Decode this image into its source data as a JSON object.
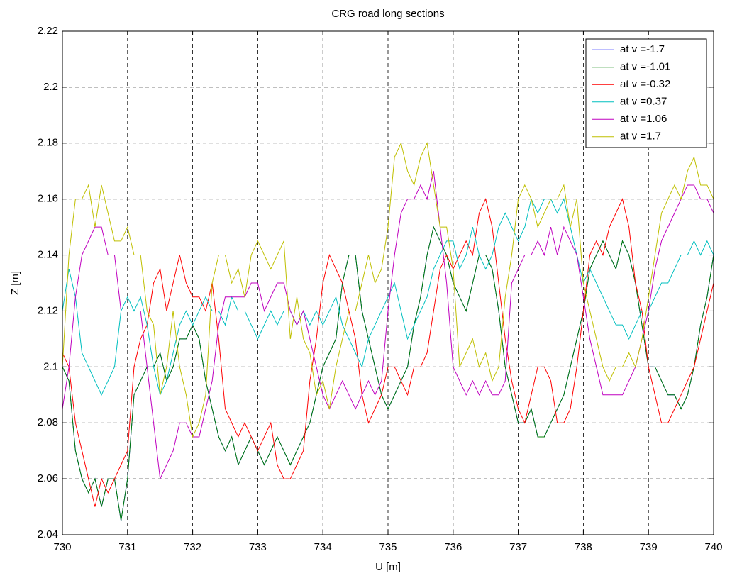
{
  "chart_data": {
    "type": "line",
    "title": "CRG road long sections",
    "x_label": "U [m]",
    "y_label": "Z [m]",
    "x": [
      730,
      730.1,
      730.2,
      730.3,
      730.4,
      730.5,
      730.6,
      730.7,
      730.8,
      730.9,
      731,
      731.1,
      731.2,
      731.3,
      731.4,
      731.5,
      731.6,
      731.7,
      731.8,
      731.9,
      732,
      732.1,
      732.2,
      732.3,
      732.4,
      732.5,
      732.6,
      732.7,
      732.8,
      732.9,
      733,
      733.1,
      733.2,
      733.3,
      733.4,
      733.5,
      733.6,
      733.7,
      733.8,
      733.9,
      734,
      734.1,
      734.2,
      734.3,
      734.4,
      734.5,
      734.6,
      734.7,
      734.8,
      734.9,
      735,
      735.1,
      735.2,
      735.3,
      735.4,
      735.5,
      735.6,
      735.7,
      735.8,
      735.9,
      736,
      736.1,
      736.2,
      736.3,
      736.4,
      736.5,
      736.6,
      736.7,
      736.8,
      736.9,
      737,
      737.1,
      737.2,
      737.3,
      737.4,
      737.5,
      737.6,
      737.7,
      737.8,
      737.9,
      738,
      738.1,
      738.2,
      738.3,
      738.4,
      738.5,
      738.6,
      738.7,
      738.8,
      738.9,
      739,
      739.1,
      739.2,
      739.3,
      739.4,
      739.5,
      739.6,
      739.7,
      739.8,
      739.9,
      740
    ],
    "series": [
      {
        "name": "at v =-1.7",
        "color": "#0000ff",
        "values": [
          2.1,
          2.095,
          2.07,
          2.06,
          2.055,
          2.06,
          2.05,
          2.06,
          2.06,
          2.045,
          2.06,
          2.09,
          2.095,
          2.1,
          2.1,
          2.105,
          2.095,
          2.1,
          2.11,
          2.11,
          2.115,
          2.11,
          2.095,
          2.085,
          2.075,
          2.07,
          2.075,
          2.065,
          2.07,
          2.075,
          2.07,
          2.065,
          2.07,
          2.075,
          2.07,
          2.065,
          2.07,
          2.075,
          2.08,
          2.09,
          2.1,
          2.105,
          2.11,
          2.13,
          2.14,
          2.14,
          2.12,
          2.11,
          2.1,
          2.09,
          2.085,
          2.09,
          2.095,
          2.1,
          2.115,
          2.125,
          2.14,
          2.15,
          2.145,
          2.14,
          2.13,
          2.125,
          2.12,
          2.13,
          2.14,
          2.14,
          2.135,
          2.12,
          2.1,
          2.09,
          2.08,
          2.08,
          2.085,
          2.075,
          2.075,
          2.08,
          2.085,
          2.09,
          2.1,
          2.11,
          2.12,
          2.135,
          2.14,
          2.145,
          2.14,
          2.135,
          2.145,
          2.14,
          2.13,
          2.115,
          2.1,
          2.1,
          2.095,
          2.09,
          2.09,
          2.085,
          2.09,
          2.1,
          2.115,
          2.125,
          2.14
        ]
      },
      {
        "name": "at v =-1.01",
        "color": "#008000",
        "values": [
          2.1,
          2.095,
          2.07,
          2.06,
          2.055,
          2.06,
          2.05,
          2.06,
          2.06,
          2.045,
          2.06,
          2.09,
          2.095,
          2.1,
          2.1,
          2.105,
          2.095,
          2.1,
          2.11,
          2.11,
          2.115,
          2.11,
          2.095,
          2.085,
          2.075,
          2.07,
          2.075,
          2.065,
          2.07,
          2.075,
          2.07,
          2.065,
          2.07,
          2.075,
          2.07,
          2.065,
          2.07,
          2.075,
          2.08,
          2.09,
          2.1,
          2.105,
          2.11,
          2.13,
          2.14,
          2.14,
          2.12,
          2.11,
          2.1,
          2.09,
          2.085,
          2.09,
          2.095,
          2.1,
          2.115,
          2.125,
          2.14,
          2.15,
          2.145,
          2.14,
          2.13,
          2.125,
          2.12,
          2.13,
          2.14,
          2.14,
          2.135,
          2.12,
          2.1,
          2.09,
          2.08,
          2.08,
          2.085,
          2.075,
          2.075,
          2.08,
          2.085,
          2.09,
          2.1,
          2.11,
          2.12,
          2.135,
          2.14,
          2.145,
          2.14,
          2.135,
          2.145,
          2.14,
          2.13,
          2.115,
          2.1,
          2.1,
          2.095,
          2.09,
          2.09,
          2.085,
          2.09,
          2.1,
          2.115,
          2.125,
          2.14
        ]
      },
      {
        "name": "at v =-0.32",
        "color": "#ff0000",
        "values": [
          2.105,
          2.1,
          2.08,
          2.07,
          2.06,
          2.05,
          2.06,
          2.055,
          2.06,
          2.065,
          2.07,
          2.1,
          2.11,
          2.115,
          2.13,
          2.135,
          2.12,
          2.13,
          2.14,
          2.13,
          2.125,
          2.125,
          2.12,
          2.13,
          2.11,
          2.085,
          2.08,
          2.075,
          2.08,
          2.075,
          2.07,
          2.075,
          2.08,
          2.065,
          2.06,
          2.06,
          2.065,
          2.07,
          2.095,
          2.11,
          2.13,
          2.14,
          2.135,
          2.13,
          2.12,
          2.11,
          2.09,
          2.08,
          2.085,
          2.09,
          2.1,
          2.1,
          2.095,
          2.09,
          2.1,
          2.1,
          2.105,
          2.12,
          2.135,
          2.14,
          2.135,
          2.14,
          2.145,
          2.14,
          2.155,
          2.16,
          2.15,
          2.13,
          2.11,
          2.095,
          2.085,
          2.08,
          2.09,
          2.1,
          2.1,
          2.095,
          2.08,
          2.08,
          2.085,
          2.1,
          2.12,
          2.14,
          2.145,
          2.14,
          2.15,
          2.155,
          2.16,
          2.15,
          2.13,
          2.12,
          2.1,
          2.09,
          2.08,
          2.08,
          2.085,
          2.09,
          2.095,
          2.1,
          2.11,
          2.12,
          2.13
        ]
      },
      {
        "name": "at v =0.37",
        "color": "#00bfbf",
        "values": [
          2.12,
          2.135,
          2.125,
          2.105,
          2.1,
          2.095,
          2.09,
          2.095,
          2.1,
          2.12,
          2.125,
          2.12,
          2.125,
          2.115,
          2.1,
          2.09,
          2.095,
          2.105,
          2.115,
          2.12,
          2.115,
          2.12,
          2.125,
          2.12,
          2.12,
          2.115,
          2.125,
          2.12,
          2.12,
          2.115,
          2.11,
          2.115,
          2.12,
          2.115,
          2.12,
          2.12,
          2.115,
          2.12,
          2.115,
          2.12,
          2.115,
          2.12,
          2.125,
          2.115,
          2.11,
          2.105,
          2.1,
          2.11,
          2.115,
          2.12,
          2.125,
          2.13,
          2.12,
          2.11,
          2.115,
          2.12,
          2.125,
          2.135,
          2.14,
          2.145,
          2.145,
          2.135,
          2.14,
          2.15,
          2.14,
          2.135,
          2.14,
          2.15,
          2.155,
          2.15,
          2.145,
          2.15,
          2.16,
          2.155,
          2.16,
          2.16,
          2.155,
          2.16,
          2.15,
          2.14,
          2.13,
          2.135,
          2.13,
          2.125,
          2.12,
          2.115,
          2.115,
          2.11,
          2.115,
          2.12,
          2.12,
          2.125,
          2.13,
          2.13,
          2.135,
          2.14,
          2.14,
          2.145,
          2.14,
          2.145,
          2.14
        ]
      },
      {
        "name": "at v =1.06",
        "color": "#bf00bf",
        "values": [
          2.085,
          2.1,
          2.125,
          2.14,
          2.145,
          2.15,
          2.15,
          2.14,
          2.14,
          2.12,
          2.12,
          2.12,
          2.12,
          2.1,
          2.08,
          2.06,
          2.065,
          2.07,
          2.08,
          2.08,
          2.075,
          2.075,
          2.085,
          2.095,
          2.115,
          2.125,
          2.125,
          2.125,
          2.125,
          2.13,
          2.13,
          2.12,
          2.125,
          2.13,
          2.13,
          2.12,
          2.115,
          2.12,
          2.11,
          2.1,
          2.09,
          2.085,
          2.09,
          2.095,
          2.09,
          2.085,
          2.09,
          2.095,
          2.09,
          2.095,
          2.12,
          2.14,
          2.155,
          2.16,
          2.16,
          2.165,
          2.16,
          2.17,
          2.15,
          2.13,
          2.1,
          2.095,
          2.09,
          2.095,
          2.09,
          2.095,
          2.09,
          2.09,
          2.095,
          2.13,
          2.135,
          2.14,
          2.14,
          2.145,
          2.14,
          2.15,
          2.14,
          2.15,
          2.145,
          2.14,
          2.125,
          2.11,
          2.1,
          2.09,
          2.09,
          2.09,
          2.09,
          2.095,
          2.1,
          2.11,
          2.12,
          2.135,
          2.145,
          2.15,
          2.155,
          2.16,
          2.165,
          2.165,
          2.16,
          2.16,
          2.155
        ]
      },
      {
        "name": "at v =1.7",
        "color": "#bfbf00",
        "values": [
          2.1,
          2.14,
          2.16,
          2.16,
          2.165,
          2.15,
          2.165,
          2.155,
          2.145,
          2.145,
          2.15,
          2.14,
          2.14,
          2.12,
          2.115,
          2.09,
          2.1,
          2.12,
          2.1,
          2.09,
          2.075,
          2.08,
          2.09,
          2.13,
          2.14,
          2.14,
          2.13,
          2.135,
          2.125,
          2.14,
          2.145,
          2.14,
          2.135,
          2.14,
          2.145,
          2.11,
          2.125,
          2.11,
          2.105,
          2.09,
          2.095,
          2.085,
          2.1,
          2.11,
          2.12,
          2.12,
          2.13,
          2.14,
          2.13,
          2.135,
          2.15,
          2.175,
          2.18,
          2.17,
          2.165,
          2.175,
          2.18,
          2.165,
          2.15,
          2.15,
          2.135,
          2.1,
          2.105,
          2.11,
          2.1,
          2.105,
          2.095,
          2.1,
          2.125,
          2.14,
          2.16,
          2.165,
          2.16,
          2.15,
          2.155,
          2.16,
          2.16,
          2.165,
          2.15,
          2.16,
          2.13,
          2.12,
          2.11,
          2.1,
          2.095,
          2.1,
          2.1,
          2.105,
          2.1,
          2.11,
          2.125,
          2.14,
          2.155,
          2.16,
          2.165,
          2.16,
          2.17,
          2.175,
          2.165,
          2.165,
          2.16
        ]
      }
    ],
    "xlim": [
      730,
      740
    ],
    "xticks": [
      730,
      731,
      732,
      733,
      734,
      735,
      736,
      737,
      738,
      739,
      740
    ],
    "ylim": [
      2.04,
      2.22
    ],
    "yticks": [
      2.04,
      2.06,
      2.08,
      2.1,
      2.12,
      2.14,
      2.16,
      2.18,
      2.2,
      2.22
    ],
    "grid": true,
    "legend": "top-right"
  }
}
